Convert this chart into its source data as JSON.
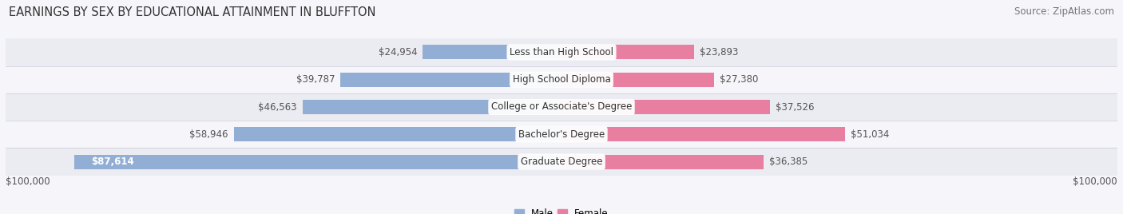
{
  "title": "EARNINGS BY SEX BY EDUCATIONAL ATTAINMENT IN BLUFFTON",
  "source": "Source: ZipAtlas.com",
  "categories": [
    "Less than High School",
    "High School Diploma",
    "College or Associate's Degree",
    "Bachelor's Degree",
    "Graduate Degree"
  ],
  "male_values": [
    24954,
    39787,
    46563,
    58946,
    87614
  ],
  "female_values": [
    23893,
    27380,
    37526,
    51034,
    36385
  ],
  "male_color": "#92aed4",
  "female_color": "#e87fa0",
  "row_bg_even": "#ebebf2",
  "row_bg_odd": "#f5f5fa",
  "bg_color": "#f5f5fa",
  "axis_max": 100000,
  "xlabel_left": "$100,000",
  "xlabel_right": "$100,000",
  "title_fontsize": 10.5,
  "source_fontsize": 8.5,
  "label_fontsize": 8.5,
  "tick_fontsize": 8.5,
  "legend_fontsize": 8.5,
  "bar_height": 0.52
}
